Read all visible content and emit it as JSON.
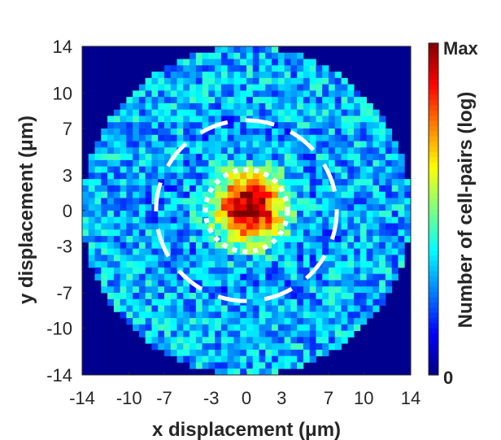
{
  "chart_data": {
    "type": "heatmap",
    "title": "",
    "xlabel": "x displacement (μm)",
    "ylabel": "y displacement (μm)",
    "xlim": [
      -14,
      14
    ],
    "ylim": [
      -14,
      14
    ],
    "xticks": [
      "-14",
      "-10",
      "-7",
      "-3",
      "0",
      "3",
      "7",
      "10",
      "14"
    ],
    "yticks": [
      "14",
      "10",
      "7",
      "3",
      "0",
      "-3",
      "-7",
      "-10",
      "-14"
    ],
    "grid": false,
    "colormap": "jet",
    "colorbar": {
      "label": "Number of cell-pairs (log)",
      "max_label": "Max",
      "min_label": "0",
      "scale": "log"
    },
    "data_region": "circle",
    "data_radius": 14,
    "peak": {
      "x": 0.3,
      "y": 0.3,
      "value": "Max"
    },
    "peak_core_radius": 2,
    "background_level": 0.3,
    "annotations": [
      {
        "shape": "circle",
        "style": "dotted",
        "color": "#ffffff",
        "center": [
          0,
          0
        ],
        "radius": 3.5
      },
      {
        "shape": "circle",
        "style": "dashed",
        "color": "#ffffff",
        "center": [
          0,
          0
        ],
        "radius": 7.7
      }
    ]
  },
  "colors": {
    "outside": "#00008f",
    "axis": "#262626",
    "annotation": "#ffffff"
  }
}
